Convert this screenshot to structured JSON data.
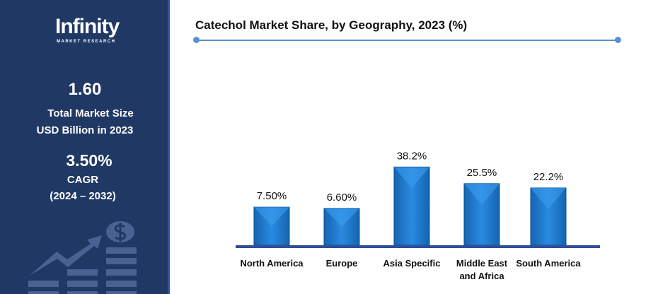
{
  "sidebar": {
    "logo": "Infinity",
    "logo_sub": "MARKET RESEARCH",
    "market_size": "1.60",
    "market_size_label1": "Total Market Size",
    "market_size_label2": "USD Billion in 2023",
    "cagr": "3.50%",
    "cagr_label": "CAGR",
    "cagr_period": "(2024 – 2032)",
    "icon": "growth-chart-dollar-icon"
  },
  "colors": {
    "sidebar": "#203864",
    "bar": "#1a78c8",
    "baseline": "#2f4f9a",
    "rule": "#5b8fd0"
  },
  "chart_data": {
    "type": "bar",
    "title": "Catechol Market Share, by Geography, 2023 (%)",
    "categories": [
      "North America",
      "Europe",
      "Asia Specific",
      "Middle East and Africa",
      "South America"
    ],
    "values": [
      7.5,
      6.6,
      38.2,
      25.5,
      22.2
    ],
    "data_labels": [
      "7.50%",
      "6.60%",
      "38.2%",
      "25.5%",
      "22.2%"
    ],
    "xlabel": "",
    "ylabel": "",
    "grid": false
  }
}
